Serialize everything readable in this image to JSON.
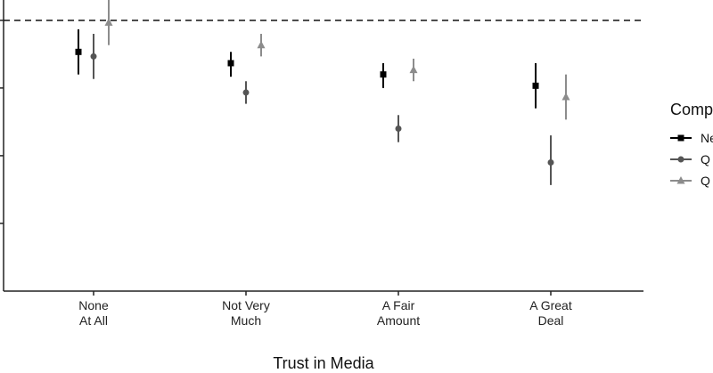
{
  "chart_data": {
    "type": "scatter",
    "xlabel": "Trust in Media",
    "categories": [
      [
        "None",
        "At All"
      ],
      [
        "Not Very",
        "Much"
      ],
      [
        "A Fair",
        "Amount"
      ],
      [
        "A Great",
        "Deal"
      ]
    ],
    "ylim": [
      -0.9,
      0.39
    ],
    "y_ticks": [
      -0.6,
      -0.3,
      0.0,
      0.3
    ],
    "reference_line": 0.3,
    "legend": {
      "title": "Comp",
      "position": "right"
    },
    "series": [
      {
        "label": "Ne",
        "shape": "square",
        "color": "#000000",
        "values": [
          0.16,
          0.11,
          0.06,
          0.01
        ],
        "lower": [
          0.06,
          0.05,
          0.0,
          -0.09
        ],
        "upper": [
          0.26,
          0.16,
          0.11,
          0.11
        ]
      },
      {
        "label": "Q",
        "shape": "circle",
        "color": "#555555",
        "values": [
          0.14,
          -0.02,
          -0.18,
          -0.33
        ],
        "lower": [
          0.04,
          -0.07,
          -0.24,
          -0.43
        ],
        "upper": [
          0.24,
          0.03,
          -0.12,
          -0.21
        ]
      },
      {
        "label": "Q",
        "shape": "triangle",
        "color": "#8c8c8c",
        "values": [
          0.29,
          0.19,
          0.08,
          -0.04
        ],
        "lower": [
          0.19,
          0.14,
          0.03,
          -0.14
        ],
        "upper": [
          0.39,
          0.24,
          0.13,
          0.06
        ]
      }
    ]
  }
}
